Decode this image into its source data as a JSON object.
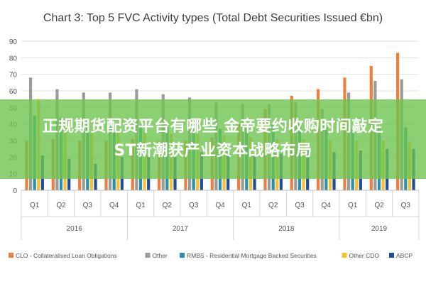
{
  "chart_data": {
    "type": "bar",
    "title": "Chart 3: Top 5 FVC Activity types (Total Debt Securities Issued €bn)",
    "categories": [
      "Q1",
      "Q2",
      "Q3",
      "Q4",
      "Q1",
      "Q2",
      "Q3",
      "Q4",
      "Q1",
      "Q2",
      "Q3",
      "Q4",
      "Q1",
      "Q2",
      "Q3"
    ],
    "years": [
      {
        "label": "2016",
        "count": 4
      },
      {
        "label": "2017",
        "count": 4
      },
      {
        "label": "2018",
        "count": 4
      },
      {
        "label": "2019",
        "count": 3
      }
    ],
    "ylim": [
      0,
      90
    ],
    "yticks": [
      0,
      10,
      20,
      30,
      40,
      50,
      60,
      70,
      80,
      90
    ],
    "grid": true,
    "legend_position": "bottom",
    "series": [
      {
        "name": "CLO - Collateralised Loan Obligations",
        "color": "#e8823d",
        "values": [
          30,
          31,
          30,
          30,
          31,
          30,
          30,
          32,
          41,
          49,
          57,
          61,
          68,
          75,
          83
        ]
      },
      {
        "name": "Other",
        "color": "#9b9b9b",
        "values": [
          68,
          61,
          59,
          59,
          61,
          58,
          56,
          53,
          52,
          52,
          53,
          49,
          59,
          66,
          67
        ]
      },
      {
        "name": "RMBS - Residential Mortgage Backed Securities",
        "color": "#2a8fa8",
        "values": [
          45,
          44,
          40,
          40,
          38,
          38,
          37,
          37,
          38,
          40,
          40,
          38,
          37,
          38,
          38
        ]
      },
      {
        "name": "Other CDO",
        "color": "#f5c12e",
        "values": [
          55,
          38,
          35,
          35,
          35,
          34,
          34,
          33,
          32,
          31,
          31,
          30,
          30,
          30,
          29
        ]
      },
      {
        "name": "ABCP",
        "color": "#1f4e9a",
        "values": [
          21,
          19,
          16,
          20,
          21,
          20,
          23,
          24,
          21,
          22,
          24,
          23,
          24,
          25,
          25
        ]
      }
    ]
  },
  "overlay": {
    "line1": "正规期货配资平台有哪些 金帝要约收购时间敲定",
    "line2": "ST新潮获产业资本战略布局"
  }
}
